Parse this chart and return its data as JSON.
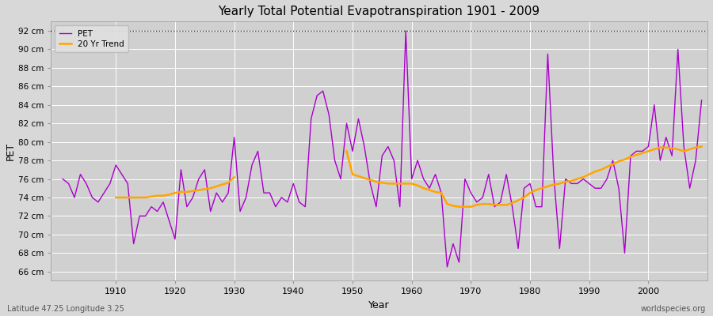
{
  "title": "Yearly Total Potential Evapotranspiration 1901 - 2009",
  "xlabel": "Year",
  "ylabel": "PET",
  "subtitle": "Latitude 47.25 Longitude 3.25",
  "watermark": "worldspecies.org",
  "pet_color": "#AA00CC",
  "trend_color": "#FFA500",
  "fig_bg": "#D8D8D8",
  "plot_bg": "#D0D0D0",
  "ylim": [
    65.0,
    93.0
  ],
  "yticks": [
    66,
    68,
    70,
    72,
    74,
    76,
    78,
    80,
    82,
    84,
    86,
    88,
    90,
    92
  ],
  "hline_y": 92,
  "years": [
    1901,
    1902,
    1903,
    1904,
    1905,
    1906,
    1907,
    1908,
    1909,
    1910,
    1911,
    1912,
    1913,
    1914,
    1915,
    1916,
    1917,
    1918,
    1919,
    1920,
    1921,
    1922,
    1923,
    1924,
    1925,
    1926,
    1927,
    1928,
    1929,
    1930,
    1931,
    1932,
    1933,
    1934,
    1935,
    1936,
    1937,
    1938,
    1939,
    1940,
    1941,
    1942,
    1943,
    1944,
    1945,
    1946,
    1947,
    1948,
    1949,
    1950,
    1951,
    1952,
    1953,
    1954,
    1955,
    1956,
    1957,
    1958,
    1959,
    1960,
    1961,
    1962,
    1963,
    1964,
    1965,
    1966,
    1967,
    1968,
    1969,
    1970,
    1971,
    1972,
    1973,
    1974,
    1975,
    1976,
    1977,
    1978,
    1979,
    1980,
    1981,
    1982,
    1983,
    1984,
    1985,
    1986,
    1987,
    1988,
    1989,
    1990,
    1991,
    1992,
    1993,
    1994,
    1995,
    1996,
    1997,
    1998,
    1999,
    2000,
    2001,
    2002,
    2003,
    2004,
    2005,
    2006,
    2007,
    2008,
    2009
  ],
  "pet_values": [
    76.0,
    75.5,
    74.0,
    76.5,
    75.5,
    74.0,
    73.5,
    74.5,
    75.5,
    77.5,
    76.5,
    75.5,
    69.0,
    72.0,
    72.0,
    73.0,
    72.5,
    73.5,
    71.5,
    69.5,
    77.0,
    73.0,
    74.0,
    76.0,
    77.0,
    72.5,
    74.5,
    73.5,
    74.5,
    80.5,
    72.5,
    74.0,
    77.5,
    79.0,
    74.5,
    74.5,
    73.0,
    74.0,
    73.5,
    75.5,
    73.5,
    73.0,
    82.5,
    85.0,
    85.5,
    83.0,
    78.0,
    76.0,
    82.0,
    79.0,
    82.5,
    79.5,
    75.5,
    73.0,
    78.5,
    79.5,
    78.0,
    73.0,
    92.0,
    76.0,
    78.0,
    76.0,
    75.0,
    76.5,
    74.5,
    66.5,
    69.0,
    67.0,
    76.0,
    74.5,
    73.5,
    74.0,
    76.5,
    73.0,
    73.5,
    76.5,
    73.0,
    68.5,
    75.0,
    75.5,
    73.0,
    73.0,
    89.5,
    76.5,
    68.5,
    76.0,
    75.5,
    75.5,
    76.0,
    75.5,
    75.0,
    75.0,
    76.0,
    78.0,
    75.0,
    68.0,
    78.5,
    79.0,
    79.0,
    79.5,
    84.0,
    78.0,
    80.5,
    78.5,
    90.0,
    79.5,
    75.0,
    78.0,
    84.5
  ],
  "trend_seg1_years": [
    1910,
    1911,
    1912,
    1913,
    1914,
    1915,
    1916,
    1917,
    1918,
    1919,
    1920,
    1921,
    1922,
    1923,
    1924,
    1925,
    1926,
    1927,
    1928,
    1929,
    1930
  ],
  "trend_seg1_vals": [
    74.0,
    74.0,
    74.0,
    74.0,
    74.0,
    74.0,
    74.1,
    74.2,
    74.2,
    74.3,
    74.5,
    74.6,
    74.6,
    74.7,
    74.8,
    74.9,
    75.0,
    75.2,
    75.4,
    75.6,
    76.2
  ],
  "trend_seg2_years": [
    1949,
    1950,
    1951,
    1952,
    1953,
    1954,
    1955,
    1956,
    1957,
    1958,
    1959,
    1960,
    1961,
    1962,
    1963,
    1964,
    1965,
    1966,
    1967,
    1968,
    1969,
    1970,
    1971,
    1972,
    1973,
    1974,
    1975,
    1976,
    1977,
    1978,
    1979,
    1980,
    1981,
    1982,
    1983,
    1984,
    1985,
    1986,
    1987,
    1988,
    1989,
    1990,
    1991,
    1992,
    1993,
    1994,
    1995,
    1996,
    1997,
    1998,
    1999,
    2000,
    2001,
    2002,
    2003,
    2004,
    2005,
    2006,
    2007,
    2008,
    2009
  ],
  "trend_seg2_vals": [
    79.0,
    76.5,
    76.3,
    76.1,
    75.9,
    75.7,
    75.6,
    75.5,
    75.5,
    75.5,
    75.5,
    75.5,
    75.3,
    75.0,
    74.8,
    74.6,
    74.5,
    73.3,
    73.1,
    73.0,
    73.0,
    73.0,
    73.2,
    73.3,
    73.3,
    73.2,
    73.2,
    73.2,
    73.4,
    73.7,
    74.0,
    74.5,
    74.8,
    75.0,
    75.2,
    75.4,
    75.5,
    75.7,
    75.8,
    76.0,
    76.2,
    76.5,
    76.8,
    77.0,
    77.3,
    77.6,
    77.9,
    78.1,
    78.4,
    78.6,
    78.8,
    79.0,
    79.2,
    79.4,
    79.4,
    79.3,
    79.2,
    79.0,
    79.2,
    79.4,
    79.5
  ]
}
